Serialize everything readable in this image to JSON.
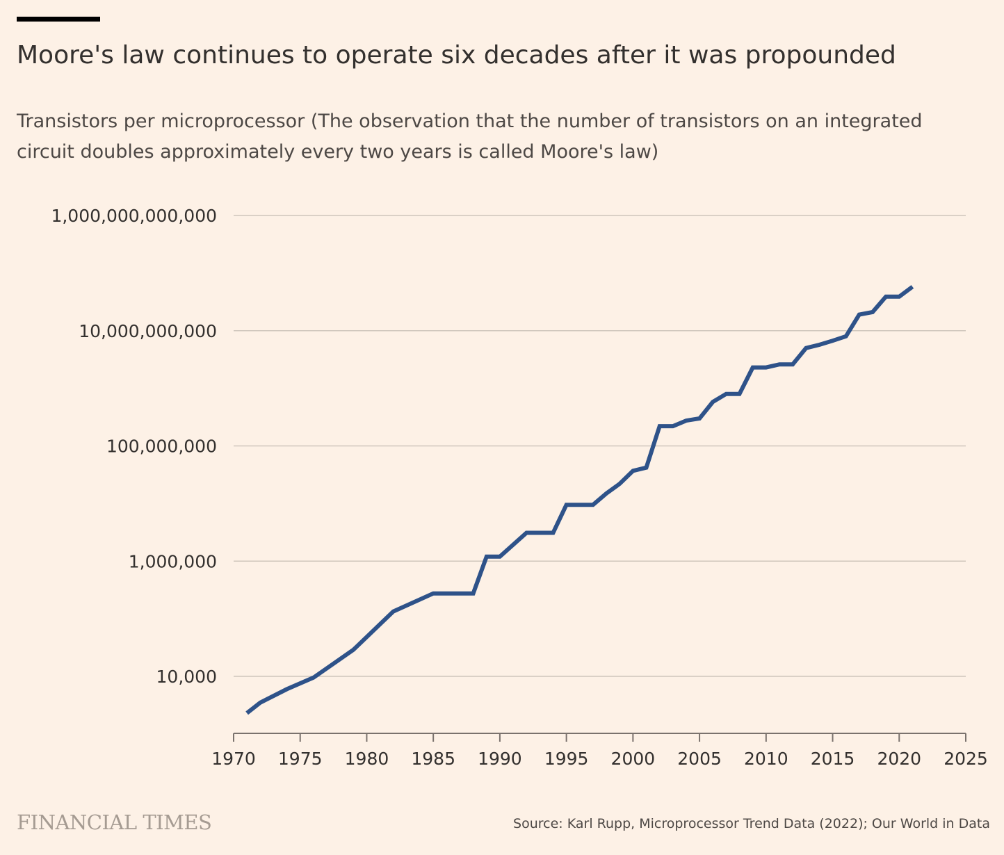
{
  "header": {
    "title": "Moore's law continues to operate six decades after it was propounded",
    "subtitle": "Transistors per microprocessor (The observation that the number of transistors on an integrated circuit doubles approximately every two years is called Moore's law)"
  },
  "footer": {
    "brand": "FINANCIAL TIMES",
    "source": "Source: Karl Rupp, Microprocessor Trend Data (2022); Our World in Data"
  },
  "colors": {
    "background": "#FDF1E6",
    "line": "#2E5289",
    "grid": "#CFC6BC",
    "axis": "#7A726D",
    "text": "#33302E"
  },
  "chart_data": {
    "type": "line",
    "title": "Moore's law continues to operate six decades after it was propounded",
    "subtitle": "Transistors per microprocessor (The observation that the number of transistors on an integrated circuit doubles approximately every two years is called Moore's law)",
    "xlabel": "",
    "ylabel": "",
    "y_scale": "log",
    "xlim": [
      1970,
      2025
    ],
    "ylim": [
      2300,
      1000000000000
    ],
    "grid": true,
    "legend": "none",
    "x_ticks": [
      1970,
      1975,
      1980,
      1985,
      1990,
      1995,
      2000,
      2005,
      2010,
      2015,
      2020,
      2025
    ],
    "x_tick_labels": [
      "1970",
      "1975",
      "1980",
      "1985",
      "1990",
      "1995",
      "2000",
      "2005",
      "2010",
      "2015",
      "2020",
      "2025"
    ],
    "y_ticks": [
      10000,
      1000000,
      100000000,
      10000000000,
      1000000000000
    ],
    "y_tick_labels": [
      "10,000",
      "1,000,000",
      "100,000,000",
      "10,000,000,000",
      "1,000,000,000,000"
    ],
    "series": [
      {
        "x": [
          1971,
          1972,
          1974,
          1976,
          1978,
          1979,
          1982,
          1985,
          1986,
          1988,
          1989,
          1990,
          1992,
          1994,
          1995,
          1997,
          1998,
          1999,
          2000,
          2001,
          2002,
          2003,
          2004,
          2005,
          2006,
          2007,
          2008,
          2009,
          2010,
          2011,
          2012,
          2013,
          2014,
          2015,
          2016,
          2017,
          2018,
          2019,
          2020,
          2021
        ],
        "y": [
          2300,
          3500,
          6000,
          9500,
          20000,
          29000,
          134000,
          275000,
          275000,
          275000,
          1200000,
          1200000,
          3100000,
          3100000,
          9500000,
          9500000,
          15000000,
          22000000,
          37000000,
          42000000,
          220000000,
          220000000,
          275000000,
          300000000,
          580000000,
          800000000,
          800000000,
          2300000000,
          2300000000,
          2600000000,
          2600000000,
          5000000000,
          5700000000,
          6700000000,
          8000000000,
          19000000000,
          21000000000,
          39000000000,
          39000000000,
          58000000000
        ]
      }
    ]
  }
}
